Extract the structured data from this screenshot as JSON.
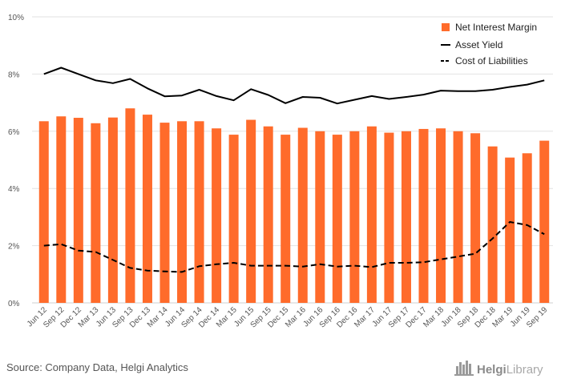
{
  "chart_data": {
    "type": "bar",
    "categories": [
      "Jun 12",
      "Sep 12",
      "Dec 12",
      "Mar 13",
      "Jun 13",
      "Sep 13",
      "Dec 13",
      "Mar 14",
      "Jun 14",
      "Sep 14",
      "Dec 14",
      "Mar 15",
      "Jun 15",
      "Sep 15",
      "Dec 15",
      "Mar 16",
      "Jun 16",
      "Sep 16",
      "Dec 16",
      "Mar 17",
      "Jun 17",
      "Sep 17",
      "Dec 17",
      "Mar 18",
      "Jun 18",
      "Sep 18",
      "Dec 18",
      "Mar 19",
      "Jun 19",
      "Sep 19"
    ],
    "series": [
      {
        "name": "Net Interest Margin",
        "kind": "bar",
        "color": "#ff6b2b",
        "values": [
          6.35,
          6.52,
          6.47,
          6.28,
          6.48,
          6.8,
          6.58,
          6.3,
          6.35,
          6.35,
          6.1,
          5.88,
          6.4,
          6.17,
          5.88,
          6.12,
          6.0,
          5.88,
          6.0,
          6.17,
          5.95,
          6.0,
          6.08,
          6.1,
          6.0,
          5.93,
          5.47,
          5.08,
          5.23,
          5.67
        ]
      },
      {
        "name": "Asset Yield",
        "kind": "line",
        "style": "solid",
        "color": "#000000",
        "values": [
          8.0,
          8.22,
          8.0,
          7.78,
          7.68,
          7.83,
          7.5,
          7.22,
          7.25,
          7.45,
          7.23,
          7.08,
          7.47,
          7.27,
          6.98,
          7.2,
          7.17,
          6.97,
          7.1,
          7.23,
          7.13,
          7.2,
          7.28,
          7.42,
          7.4,
          7.4,
          7.45,
          7.55,
          7.63,
          7.78
        ]
      },
      {
        "name": "Cost of Liabilities",
        "kind": "line",
        "style": "dashed",
        "color": "#000000",
        "values": [
          2.0,
          2.05,
          1.83,
          1.78,
          1.5,
          1.22,
          1.13,
          1.1,
          1.08,
          1.28,
          1.35,
          1.4,
          1.3,
          1.3,
          1.3,
          1.27,
          1.35,
          1.27,
          1.3,
          1.25,
          1.4,
          1.4,
          1.42,
          1.52,
          1.62,
          1.72,
          2.25,
          2.83,
          2.72,
          2.4
        ]
      }
    ],
    "ylim": [
      0,
      10
    ],
    "yticks": [
      0,
      2,
      4,
      6,
      8,
      10
    ],
    "y_tick_labels": [
      "0%",
      "2%",
      "4%",
      "6%",
      "8%",
      "10%"
    ],
    "grid": true,
    "legend_position": "top-right",
    "title": "",
    "xlabel": "",
    "ylabel": ""
  },
  "footer": {
    "source": "Source: Company Data, Helgi Analytics",
    "brand_strong": "Helgi",
    "brand_light": "Library"
  }
}
